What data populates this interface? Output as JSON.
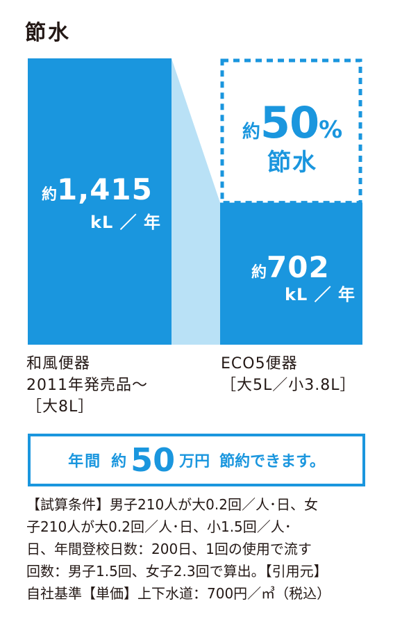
{
  "title": "節水",
  "chart_data": {
    "type": "bar",
    "categories": [
      "和風便器 2011年発売品～［大8L］",
      "ECO5便器［大5L／小3.8L］"
    ],
    "values": [
      1415,
      702
    ],
    "unit": "kL／年",
    "value_labels": [
      {
        "prefix": "約",
        "number": "1,415",
        "unit": "kL ／ 年"
      },
      {
        "prefix": "約",
        "number": "702",
        "unit": "kL ／ 年"
      }
    ],
    "annotation": {
      "prefix": "約",
      "number": "50",
      "suffix": "%",
      "line2": "節水"
    },
    "colors": {
      "bar": "#1a96de",
      "connector": "#b9e1f6",
      "text_dark": "#231815"
    }
  },
  "categories_display": {
    "left": [
      "和風便器",
      "2011年発売品～",
      "［大8L］"
    ],
    "right": [
      "ECO5便器",
      "［大5L／小3.8L］"
    ]
  },
  "banner": {
    "part1": "年間",
    "part2": "約",
    "part3": "50",
    "part4": "万円",
    "part5": "節約できます。"
  },
  "note_lines": [
    "【試算条件】男子210人が大0.2回／人･日、女",
    "子210人が大0.2回／人･日、小1.5回／人･",
    "日、年間登校日数：200日、1回の使用で流す",
    "回数：男子1.5回、女子2.3回で算出。【引用元】",
    "自社基準【単価】上下水道：700円／㎥（税込）"
  ]
}
